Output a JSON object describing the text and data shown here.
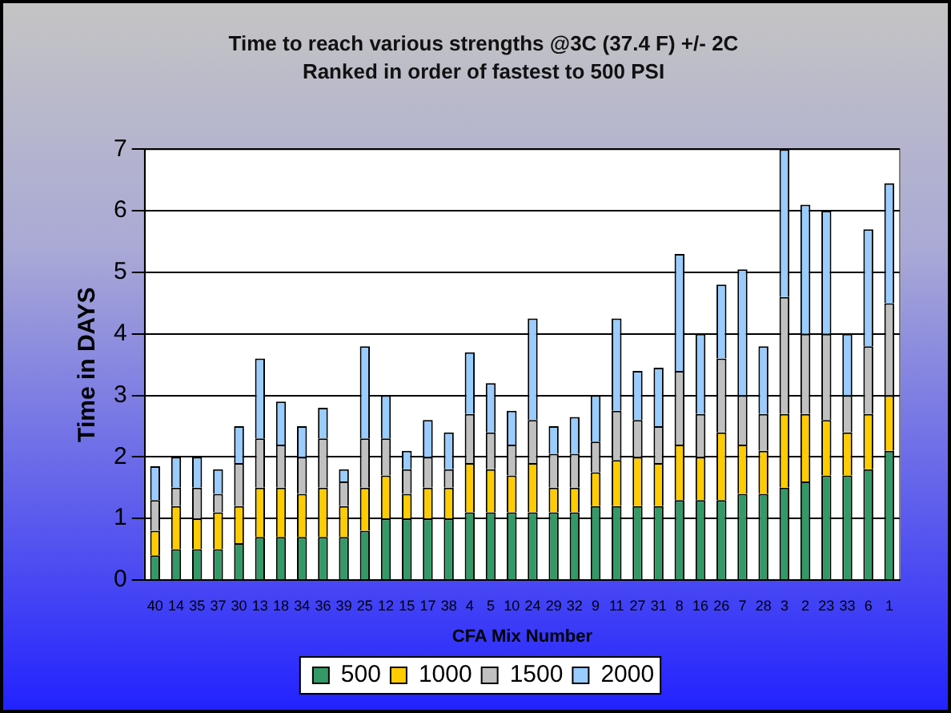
{
  "chart_data": {
    "type": "bar",
    "title": "Time to reach various strengths @3C (37.4 F) +/- 2C",
    "subtitle": "Ranked in order of fastest to 500 PSI",
    "xlabel": "CFA Mix Number",
    "ylabel": "Time in DAYS",
    "categories": [
      "40",
      "14",
      "35",
      "37",
      "30",
      "13",
      "18",
      "34",
      "36",
      "39",
      "25",
      "12",
      "15",
      "17",
      "38",
      "4",
      "5",
      "10",
      "24",
      "29",
      "32",
      "9",
      "11",
      "27",
      "31",
      "8",
      "16",
      "26",
      "7",
      "28",
      "3",
      "2",
      "23",
      "33",
      "6",
      "1"
    ],
    "stacked": true,
    "ylim": [
      0,
      7
    ],
    "yticks": [
      0,
      1,
      2,
      3,
      4,
      5,
      6,
      7
    ],
    "grid": "y",
    "legend": "bottom",
    "series": [
      {
        "name": "500",
        "color": "#339966",
        "values": [
          0.4,
          0.5,
          0.5,
          0.5,
          0.6,
          0.7,
          0.7,
          0.7,
          0.7,
          0.7,
          0.8,
          1.0,
          1.0,
          1.0,
          1.0,
          1.1,
          1.1,
          1.1,
          1.1,
          1.1,
          1.1,
          1.2,
          1.2,
          1.2,
          1.2,
          1.3,
          1.3,
          1.3,
          1.4,
          1.4,
          1.5,
          1.6,
          1.7,
          1.7,
          1.8,
          2.1
        ]
      },
      {
        "name": "1000",
        "color": "#ffcc00",
        "values": [
          0.4,
          0.7,
          0.5,
          0.6,
          0.6,
          0.8,
          0.8,
          0.7,
          0.8,
          0.5,
          0.7,
          0.7,
          0.4,
          0.5,
          0.5,
          0.8,
          0.7,
          0.6,
          0.8,
          0.4,
          0.4,
          0.55,
          0.75,
          0.8,
          0.7,
          0.9,
          0.7,
          1.1,
          0.8,
          0.7,
          1.2,
          1.1,
          0.9,
          0.7,
          0.9,
          0.9
        ]
      },
      {
        "name": "1500",
        "color": "#c0c0c0",
        "values": [
          0.5,
          0.3,
          0.5,
          0.3,
          0.7,
          0.8,
          0.7,
          0.6,
          0.8,
          0.4,
          0.8,
          0.6,
          0.4,
          0.5,
          0.3,
          0.8,
          0.6,
          0.5,
          0.7,
          0.55,
          0.55,
          0.5,
          0.8,
          0.6,
          0.6,
          1.2,
          0.7,
          1.2,
          0.8,
          0.6,
          1.9,
          1.3,
          1.4,
          0.6,
          1.1,
          1.5
        ]
      },
      {
        "name": "2000",
        "color": "#99ccff",
        "values": [
          0.55,
          0.5,
          0.5,
          0.4,
          0.6,
          1.3,
          0.7,
          0.5,
          0.5,
          0.2,
          1.5,
          0.7,
          0.3,
          0.6,
          0.6,
          1.0,
          0.8,
          0.55,
          1.65,
          0.45,
          0.6,
          0.75,
          1.5,
          0.8,
          0.95,
          1.9,
          1.3,
          1.2,
          2.05,
          1.1,
          2.4,
          2.1,
          2.0,
          1.0,
          1.9,
          1.95
        ]
      }
    ]
  }
}
